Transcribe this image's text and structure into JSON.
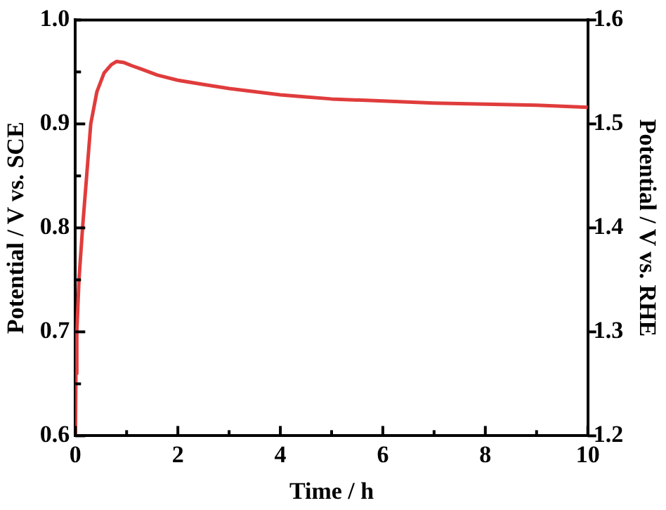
{
  "chart_data": {
    "type": "line",
    "xlabel": "Time / h",
    "ylabel": "Potential / V vs. SCE",
    "y2label": "Potential / V vs. RHE",
    "x": [
      0,
      0.01,
      0.028,
      0.07,
      0.14,
      0.22,
      0.3,
      0.42,
      0.56,
      0.7,
      0.8,
      0.95,
      1.1,
      1.27,
      1.6,
      2,
      2.5,
      3,
      3.5,
      4,
      4.5,
      5,
      6,
      7,
      8,
      9,
      10
    ],
    "series": [
      {
        "color": "#e03c3c",
        "values": [
          0.6,
          0.66,
          0.7,
          0.75,
          0.8,
          0.85,
          0.9,
          0.931,
          0.949,
          0.957,
          0.96,
          0.959,
          0.956,
          0.953,
          0.947,
          0.942,
          0.938,
          0.934,
          0.931,
          0.928,
          0.926,
          0.924,
          0.922,
          0.92,
          0.919,
          0.918,
          0.916
        ]
      }
    ],
    "xlim": [
      0,
      10
    ],
    "xticks": [
      0,
      {
        "value": 1,
        "label": null
      },
      2,
      {
        "value": 3,
        "label": null
      },
      4,
      {
        "value": 5,
        "label": null
      },
      6,
      {
        "value": 7,
        "label": null
      },
      8,
      {
        "value": 9,
        "label": null
      },
      10
    ],
    "ylim": [
      0.6,
      1.0
    ],
    "yticks": [
      0.6,
      {
        "value": 0.65,
        "label": null
      },
      0.7,
      {
        "value": 0.75,
        "label": null
      },
      0.8,
      {
        "value": 0.85,
        "label": null
      },
      0.9,
      {
        "value": 0.95,
        "label": null
      },
      {
        "value": 1,
        "label": "1.0"
      }
    ],
    "y2lim": [
      1.2,
      1.6
    ],
    "y2ticks": [
      1.2,
      1.3,
      1.4,
      1.5,
      1.6
    ],
    "grid": false,
    "legend": false,
    "marker": "none",
    "line_style": "solid"
  }
}
